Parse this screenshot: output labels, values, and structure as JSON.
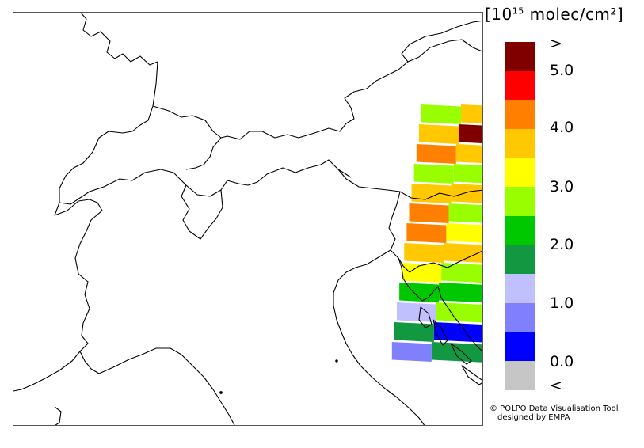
{
  "legend": {
    "title_prefix": "[10",
    "title_exp": "15",
    "title_suffix": " molec/cm²]",
    "colors": [
      "#c6c6c6",
      "#0000ff",
      "#8080ff",
      "#c0c0ff",
      "#119840",
      "#00c800",
      "#99ff00",
      "#ffff00",
      "#ffc800",
      "#ff8000",
      "#ff0000",
      "#800000"
    ],
    "ticks": [
      ">",
      "5.0",
      "4.0",
      "3.0",
      "2.0",
      "1.0",
      "0.0",
      "<"
    ]
  },
  "credit": {
    "line1": "© POLPO Data Visualisation Tool",
    "line2": "designed by EMPA"
  },
  "map": {
    "border_color": "#000000",
    "swaths": [
      [
        "#99ff00",
        "#ffc800"
      ],
      [
        "#ffc800",
        "#800000"
      ],
      [
        "#ff8000",
        "#ffc800"
      ],
      [
        "#99ff00",
        "#99ff00"
      ],
      [
        "#ffc800",
        "#ffc800"
      ],
      [
        "#ff8000",
        "#99ff00"
      ],
      [
        "#ff8000",
        "#ffff00"
      ],
      [
        "#ffc800",
        "#ffc800"
      ],
      [
        "#ffff00",
        "#99ff00"
      ],
      [
        "#00c800",
        "#00c800"
      ],
      [
        "#c0c0ff",
        "#99ff00"
      ],
      [
        "#119840",
        "#0000ff"
      ],
      [
        "#8080ff",
        "#119840"
      ]
    ]
  }
}
